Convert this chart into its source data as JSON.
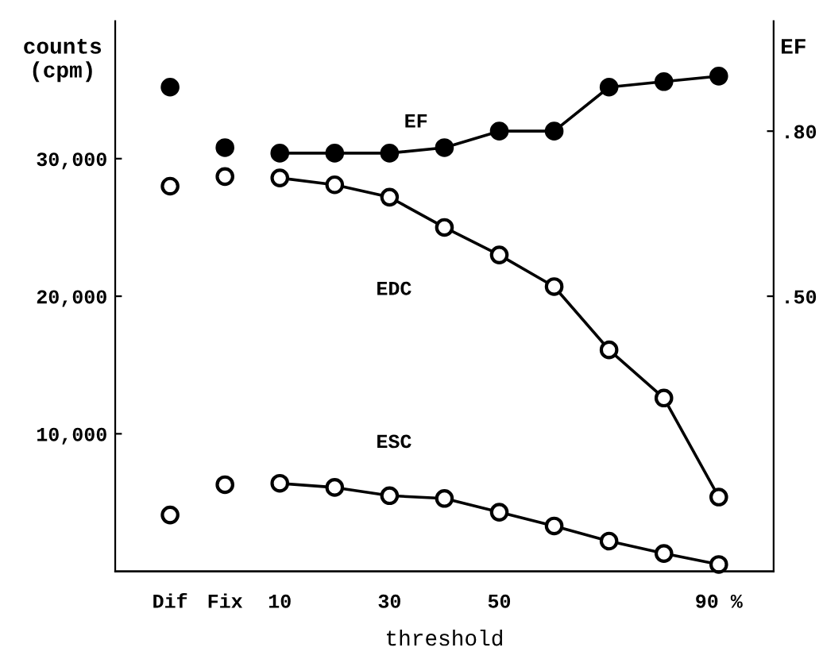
{
  "chart_data": {
    "type": "line",
    "ylabel": "counts\n(cpm)",
    "y2label": "EF",
    "xlabel": "threshold",
    "categories": [
      "Dif",
      "Fix",
      "10",
      null,
      "30",
      null,
      "50",
      null,
      null,
      null,
      "90 %"
    ],
    "series": [
      {
        "type": "scatter",
        "color": "#000000",
        "axis": "y2",
        "values": [
          0.88,
          0.77,
          null,
          null,
          null,
          null,
          null,
          null,
          null,
          null,
          null
        ]
      },
      {
        "name": "EF",
        "color": "#000000",
        "axis": "y2",
        "values": [
          null,
          null,
          0.76,
          0.76,
          0.76,
          0.77,
          0.8,
          0.8,
          0.88,
          0.89,
          0.9
        ]
      },
      {
        "type": "scatter",
        "color": "#ffffff",
        "values": [
          28000,
          28700,
          null,
          null,
          null,
          null,
          null,
          null,
          null,
          null,
          null
        ]
      },
      {
        "name": "EDC",
        "color": "#ffffff",
        "values": [
          null,
          null,
          28600,
          28100,
          27200,
          25000,
          23000,
          20700,
          16100,
          12600,
          5400
        ]
      },
      {
        "type": "scatter",
        "color": "#ffffff",
        "values": [
          4100,
          6300,
          null,
          null,
          null,
          null,
          null,
          null,
          null,
          null,
          null
        ]
      },
      {
        "name": "ESC",
        "color": "#ffffff",
        "values": [
          null,
          null,
          6400,
          6100,
          5500,
          5300,
          4300,
          3300,
          2200,
          1300,
          500
        ]
      }
    ],
    "ylim": [
      0,
      40000
    ],
    "yticks": [
      {
        "value": 10000,
        "label": "10,000"
      },
      {
        "value": 20000,
        "label": "20,000"
      },
      {
        "value": 30000,
        "label": "30,000"
      }
    ],
    "y2lim": [
      0,
      1.0
    ],
    "y2ticks": [
      {
        "value": 0.5,
        "label": ".50"
      },
      {
        "value": 0.8,
        "label": ".80"
      }
    ],
    "marker": "circle",
    "line_style": "solid",
    "grid": false
  }
}
